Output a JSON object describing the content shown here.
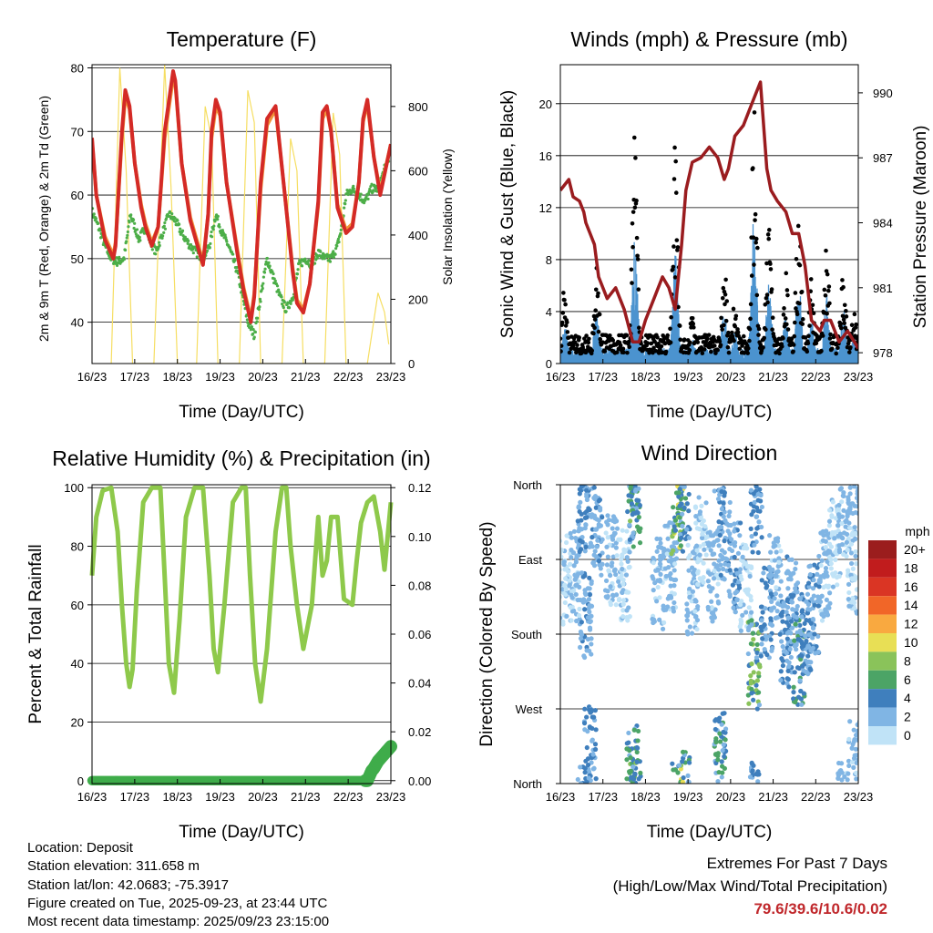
{
  "chart_data": [
    {
      "id": "temperature",
      "type": "line",
      "title": "Temperature (F)",
      "xlabel": "Time (Day/UTC)",
      "ylabel": "2m & 9m T (Red, Orange) & 2m Td (Green)",
      "y2label": "Solar Insolation (Yellow)",
      "x_ticks": [
        "16/23",
        "17/23",
        "18/23",
        "19/23",
        "20/23",
        "21/23",
        "22/23",
        "23/23"
      ],
      "xlim": [
        0,
        7
      ],
      "ylim": [
        33.5,
        80.5
      ],
      "y_ticks": [
        40,
        50,
        60,
        70,
        80
      ],
      "y2lim": [
        0,
        930
      ],
      "y2_ticks": [
        0,
        200,
        400,
        600,
        800
      ],
      "colors": {
        "t2m": "#d42a26",
        "t9m": "#f0953a",
        "td": "#4cae48",
        "solar": "#f6de62"
      },
      "series": [
        {
          "name": "2m T",
          "x": [
            0,
            0.1,
            0.3,
            0.5,
            0.55,
            0.7,
            0.78,
            0.88,
            1.0,
            1.15,
            1.25,
            1.4,
            1.55,
            1.7,
            1.9,
            1.95,
            2.1,
            2.3,
            2.6,
            2.72,
            2.8,
            2.9,
            3.0,
            3.15,
            3.4,
            3.55,
            3.72,
            3.8,
            3.95,
            4.1,
            4.3,
            4.5,
            4.7,
            4.8,
            4.95,
            5.1,
            5.3,
            5.4,
            5.5,
            5.6,
            5.75,
            5.95,
            6.1,
            6.25,
            6.35,
            6.45,
            6.6,
            6.75,
            7.0
          ],
          "values": [
            69,
            60,
            53,
            50,
            52,
            70,
            76.5,
            74,
            65,
            58,
            55,
            52,
            55,
            70,
            79.5,
            78,
            65,
            56,
            49,
            57,
            70,
            75,
            73,
            62,
            51,
            45,
            40,
            44,
            62,
            72,
            74,
            61,
            48,
            43,
            41.5,
            46,
            59,
            73,
            74,
            70,
            58,
            54,
            55,
            62,
            72,
            75,
            66,
            60,
            68
          ]
        },
        {
          "name": "9m T",
          "x": [
            0,
            0.1,
            0.3,
            0.5,
            0.55,
            0.7,
            0.78,
            0.88,
            1.0,
            1.15,
            1.25,
            1.4,
            1.55,
            1.7,
            1.9,
            1.95,
            2.1,
            2.3,
            2.6,
            2.72,
            2.8,
            2.9,
            3.0,
            3.15,
            3.4,
            3.55,
            3.72,
            3.8,
            3.95,
            4.1,
            4.3,
            4.5,
            4.7,
            4.8,
            4.95,
            5.1,
            5.3,
            5.4,
            5.5,
            5.6,
            5.75,
            5.95,
            6.1,
            6.25,
            6.35,
            6.45,
            6.6,
            6.75,
            7.0
          ],
          "values": [
            68.5,
            60,
            53.5,
            50.5,
            52.5,
            69,
            75.5,
            73.5,
            65,
            58.5,
            55.5,
            52.5,
            55,
            69,
            78.5,
            77.5,
            65,
            56.5,
            49.5,
            57,
            69,
            74,
            72.5,
            62,
            51.5,
            45.5,
            40.5,
            44.5,
            61,
            71,
            73.5,
            61,
            48.5,
            43.5,
            42,
            46,
            58.5,
            72,
            73.5,
            70,
            58.5,
            54.5,
            55.5,
            62,
            71.5,
            74.5,
            66,
            60.5,
            68
          ]
        },
        {
          "name": "2m Td",
          "x": [
            0,
            0.15,
            0.3,
            0.45,
            0.6,
            0.75,
            0.9,
            1.0,
            1.1,
            1.25,
            1.35,
            1.5,
            1.65,
            1.8,
            1.95,
            2.1,
            2.3,
            2.6,
            2.75,
            2.9,
            3.05,
            3.2,
            3.4,
            3.5,
            3.65,
            3.8,
            3.95,
            4.1,
            4.25,
            4.4,
            4.55,
            4.7,
            4.85,
            5.0,
            5.15,
            5.3,
            5.45,
            5.6,
            5.75,
            5.85,
            5.95,
            6.1,
            6.25,
            6.4,
            6.55,
            6.7,
            6.85,
            7.0
          ],
          "values": [
            57.5,
            55,
            52,
            50,
            49.5,
            50,
            57,
            55,
            53,
            55,
            53,
            51,
            54,
            57,
            56,
            54,
            52,
            50,
            52,
            57,
            54,
            52,
            48,
            45,
            40,
            38,
            44,
            50,
            47,
            44,
            42,
            44,
            49,
            50,
            49,
            51,
            50,
            50,
            52,
            55,
            60,
            61,
            60,
            59,
            61,
            61,
            64,
            67
          ]
        },
        {
          "name": "Solar Insolation",
          "x": [
            0.45,
            0.65,
            0.8,
            0.95,
            1.45,
            1.7,
            1.85,
            2.0,
            2.45,
            2.65,
            2.8,
            2.95,
            3.45,
            3.65,
            3.8,
            3.95,
            4.45,
            4.65,
            4.8,
            4.95,
            5.45,
            5.65,
            5.8,
            5.95,
            6.45,
            6.7,
            6.85,
            6.95
          ],
          "values": [
            0,
            920,
            600,
            0,
            0,
            930,
            550,
            0,
            0,
            800,
            700,
            0,
            0,
            850,
            750,
            0,
            0,
            700,
            600,
            0,
            0,
            780,
            650,
            0,
            0,
            220,
            160,
            60
          ]
        }
      ]
    },
    {
      "id": "winds",
      "type": "scatter",
      "title": "Winds (mph) & Pressure (mb)",
      "xlabel": "Time (Day/UTC)",
      "ylabel": "Sonic Wind & Gust (Blue, Black)",
      "y2label": "Station Pressure (Maroon)",
      "x_ticks": [
        "16/23",
        "17/23",
        "18/23",
        "19/23",
        "20/23",
        "21/23",
        "22/23",
        "23/23"
      ],
      "xlim": [
        0,
        7
      ],
      "ylim": [
        0,
        23
      ],
      "y_ticks": [
        0,
        4,
        8,
        12,
        16,
        20
      ],
      "y2lim": [
        977.5,
        991.3
      ],
      "y2_ticks": [
        978,
        981,
        984,
        987,
        990
      ],
      "colors": {
        "wind": "#4b93cf",
        "gust": "#000000",
        "pressure": "#9a1c1f"
      },
      "burst_centers": [
        0.1,
        0.85,
        1.75,
        2.7,
        3.1,
        3.85,
        4.1,
        4.55,
        4.9,
        5.3,
        5.6,
        5.9,
        6.25,
        6.65,
        6.9
      ],
      "burst_peaks": [
        6,
        8,
        18,
        18,
        4,
        8,
        5,
        21,
        12,
        7,
        12,
        7,
        10,
        8,
        4
      ],
      "pressure": {
        "x": [
          0,
          0.2,
          0.3,
          0.45,
          0.55,
          0.6,
          0.7,
          0.8,
          0.9,
          1.1,
          1.3,
          1.5,
          1.7,
          1.85,
          2.0,
          2.2,
          2.4,
          2.55,
          2.7,
          2.85,
          2.95,
          3.1,
          3.3,
          3.5,
          3.7,
          3.85,
          3.95,
          4.1,
          4.3,
          4.5,
          4.7,
          4.85,
          4.95,
          5.1,
          5.3,
          5.45,
          5.6,
          5.75,
          5.9,
          6.1,
          6.2,
          6.35,
          6.55,
          6.75,
          7.0
        ],
        "values": [
          985.5,
          986,
          985.2,
          985,
          984.5,
          984,
          983.5,
          983,
          981.5,
          980.5,
          981,
          980,
          978.5,
          978.5,
          979.5,
          980.5,
          981.5,
          981,
          980,
          983,
          985.5,
          986.8,
          987,
          987.5,
          987,
          986,
          986.5,
          988,
          988.5,
          989.5,
          990.5,
          986.5,
          985.5,
          985,
          984.5,
          983.5,
          983.5,
          982,
          979.5,
          979,
          979.5,
          979.5,
          978.5,
          979,
          978.2
        ]
      }
    },
    {
      "id": "humidity",
      "type": "line",
      "title": "Relative Humidity (%) & Precipitation (in)",
      "xlabel": "Time (Day/UTC)",
      "ylabel": "Percent & Total Rainfall",
      "x_ticks": [
        "16/23",
        "17/23",
        "18/23",
        "19/23",
        "20/23",
        "21/23",
        "22/23",
        "23/23"
      ],
      "xlim": [
        0,
        7
      ],
      "ylim": [
        -1,
        101
      ],
      "y_ticks": [
        0,
        20,
        40,
        60,
        80,
        100
      ],
      "y2lim": [
        -0.0012,
        0.1212
      ],
      "y2_ticks": [
        "0.00",
        "0.02",
        "0.04",
        "0.06",
        "0.08",
        "0.10",
        "0.12"
      ],
      "colors": {
        "rh": "#8ec94b",
        "precip": "#3fac4a"
      },
      "rh": {
        "x": [
          0,
          0.1,
          0.25,
          0.45,
          0.6,
          0.7,
          0.8,
          0.88,
          0.95,
          1.05,
          1.2,
          1.4,
          1.6,
          1.7,
          1.8,
          1.92,
          2.05,
          2.2,
          2.4,
          2.6,
          2.75,
          2.85,
          2.95,
          3.1,
          3.3,
          3.5,
          3.6,
          3.7,
          3.82,
          3.95,
          4.1,
          4.3,
          4.45,
          4.55,
          4.65,
          4.8,
          4.95,
          5.15,
          5.3,
          5.4,
          5.5,
          5.6,
          5.75,
          5.9,
          6.1,
          6.2,
          6.3,
          6.45,
          6.6,
          6.75,
          6.85,
          7.0
        ],
        "values": [
          70,
          90,
          99,
          100,
          85,
          60,
          40,
          32,
          38,
          65,
          95,
          100,
          100,
          70,
          40,
          30,
          55,
          90,
          100,
          100,
          70,
          45,
          37,
          60,
          95,
          100,
          100,
          70,
          40,
          27,
          45,
          85,
          100,
          100,
          80,
          60,
          45,
          60,
          90,
          70,
          75,
          90,
          90,
          62,
          60,
          75,
          88,
          95,
          97,
          85,
          72,
          95
        ]
      },
      "precip": {
        "x": [
          0,
          1,
          2,
          3,
          4,
          5,
          5.8,
          6.45,
          6.55,
          6.6,
          6.7,
          6.8,
          6.9,
          7.0
        ],
        "values": [
          0,
          0,
          0,
          0,
          0,
          0,
          0,
          0,
          0.004,
          0.005,
          0.008,
          0.01,
          0.012,
          0.014
        ]
      }
    },
    {
      "id": "direction",
      "type": "scatter",
      "title": "Wind Direction",
      "xlabel": "Time (Day/UTC)",
      "ylabel": "Direction (Colored By Speed)",
      "x_ticks": [
        "16/23",
        "17/23",
        "18/23",
        "19/23",
        "20/23",
        "21/23",
        "22/23",
        "23/23"
      ],
      "xlim": [
        0,
        7
      ],
      "ylim": [
        0,
        360
      ],
      "y_ticks": [
        "North",
        "West",
        "South",
        "East",
        "North"
      ],
      "colorbar_title": "mph",
      "colorbar_labels": [
        "20+",
        "18",
        "16",
        "14",
        "12",
        "10",
        "8",
        "6",
        "4",
        "2",
        "0"
      ],
      "colorbar_colors": [
        "#9b1d1d",
        "#c11c1d",
        "#da3524",
        "#f16628",
        "#f9a940",
        "#e8df55",
        "#8ac35a",
        "#4ca466",
        "#3f7fbd",
        "#80b5e4",
        "#c0e3f7"
      ],
      "clusters": [
        {
          "t": 0.1,
          "d": 245,
          "s": 1
        },
        {
          "t": 0.35,
          "d": 250,
          "s": 2
        },
        {
          "t": 0.6,
          "d": 200,
          "s": 3
        },
        {
          "t": 0.7,
          "d": 40,
          "s": 4
        },
        {
          "t": 0.55,
          "d": 330,
          "s": 4
        },
        {
          "t": 0.85,
          "d": 300,
          "s": 3
        },
        {
          "t": 1.2,
          "d": 270,
          "s": 2
        },
        {
          "t": 1.5,
          "d": 250,
          "s": 1
        },
        {
          "t": 1.75,
          "d": 340,
          "s": 6
        },
        {
          "t": 1.7,
          "d": 15,
          "s": 5
        },
        {
          "t": 2.3,
          "d": 240,
          "s": 2
        },
        {
          "t": 2.6,
          "d": 260,
          "s": 2
        },
        {
          "t": 2.75,
          "d": 330,
          "s": 8
        },
        {
          "t": 2.9,
          "d": 345,
          "s": 5
        },
        {
          "t": 3.1,
          "d": 235,
          "s": 2
        },
        {
          "t": 3.3,
          "d": 290,
          "s": 1
        },
        {
          "t": 3.6,
          "d": 250,
          "s": 2
        },
        {
          "t": 3.75,
          "d": 30,
          "s": 5
        },
        {
          "t": 3.85,
          "d": 300,
          "s": 3
        },
        {
          "t": 4.1,
          "d": 260,
          "s": 3
        },
        {
          "t": 4.35,
          "d": 235,
          "s": 1
        },
        {
          "t": 4.55,
          "d": 145,
          "s": 7
        },
        {
          "t": 4.6,
          "d": 330,
          "s": 4
        },
        {
          "t": 4.85,
          "d": 205,
          "s": 4
        },
        {
          "t": 5.05,
          "d": 245,
          "s": 2
        },
        {
          "t": 5.3,
          "d": 170,
          "s": 4
        },
        {
          "t": 5.45,
          "d": 220,
          "s": 3
        },
        {
          "t": 5.6,
          "d": 150,
          "s": 5
        },
        {
          "t": 5.75,
          "d": 185,
          "s": 4
        },
        {
          "t": 5.95,
          "d": 210,
          "s": 3
        },
        {
          "t": 6.2,
          "d": 250,
          "s": 2
        },
        {
          "t": 6.45,
          "d": 290,
          "s": 1
        },
        {
          "t": 6.65,
          "d": 330,
          "s": 2
        },
        {
          "t": 6.85,
          "d": 260,
          "s": 1
        },
        {
          "t": 6.9,
          "d": 20,
          "s": 2
        }
      ]
    }
  ],
  "footer": {
    "location": "Location: Deposit",
    "elevation": "Station elevation: 311.658 m",
    "latlon": "Station lat/lon: 42.0683; -75.3917",
    "created": "Figure created on Tue, 2025-09-23, at 23:44 UTC",
    "timestamp": "Most recent data timestamp: 2025/09/23 23:15:00",
    "extremes_title": "Extremes For Past 7 Days",
    "extremes_subtitle": "(High/Low/Max Wind/Total Precipitation)",
    "extremes_values": "79.6/39.6/10.6/0.02"
  }
}
